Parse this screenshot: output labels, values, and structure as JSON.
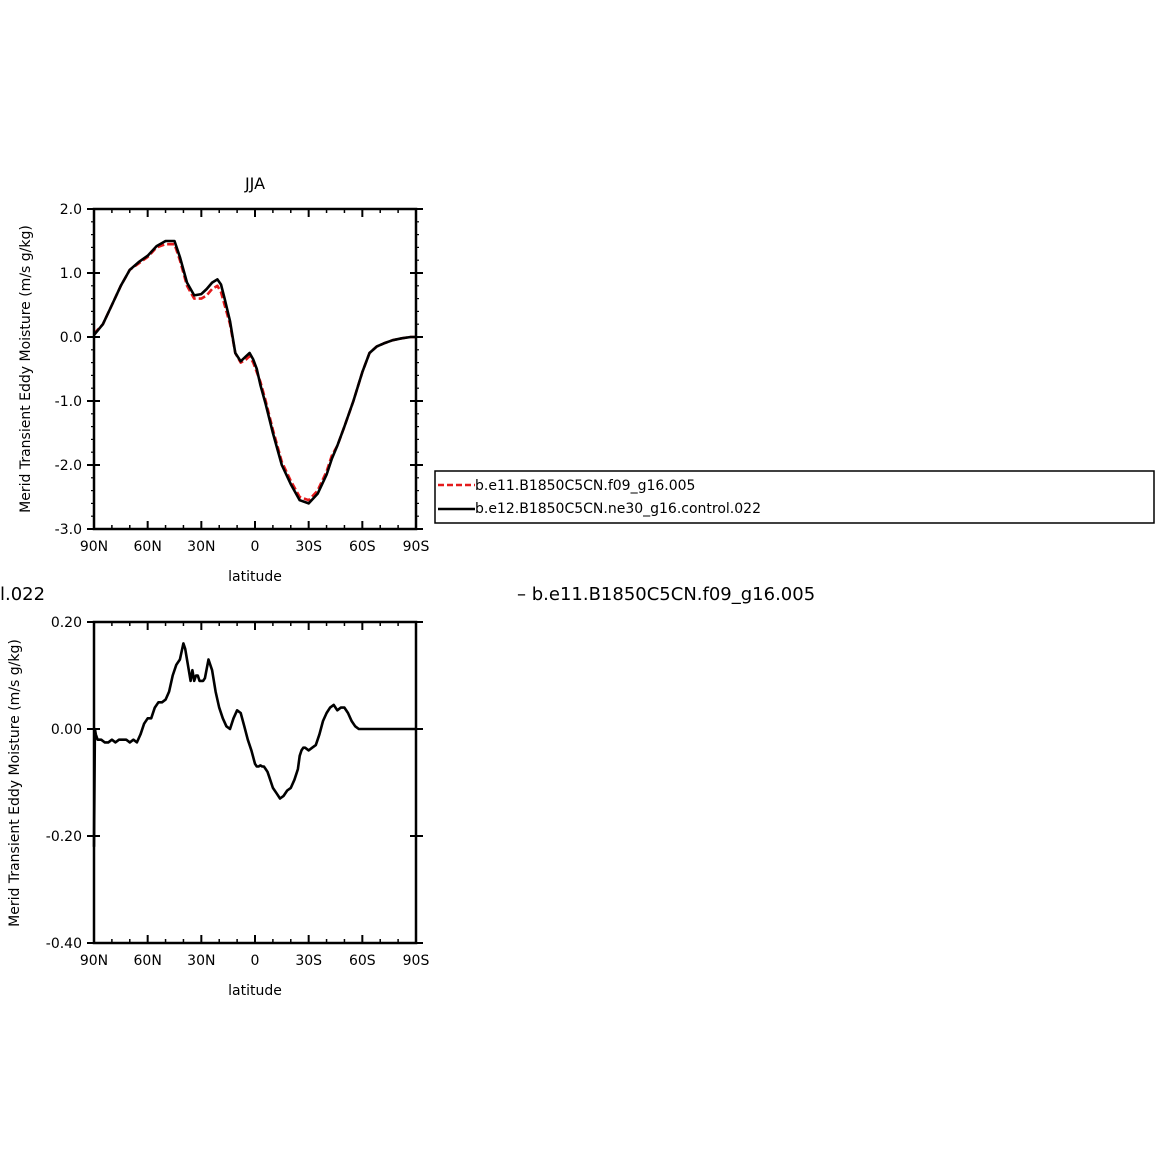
{
  "chart_data": [
    {
      "type": "line",
      "title": "JJA",
      "xlabel": "latitude",
      "ylabel": "Merid Transient Eddy Moisture (m/s g/kg)",
      "xlim": [
        -90,
        90
      ],
      "ylim": [
        -3.0,
        2.0
      ],
      "x_ticks": [
        -90,
        -60,
        -30,
        0,
        30,
        60,
        90
      ],
      "x_tick_labels": [
        "90N",
        "60N",
        "30N",
        "0",
        "30S",
        "60S",
        "90S"
      ],
      "y_ticks": [
        -3.0,
        -2.0,
        -1.0,
        0.0,
        1.0,
        2.0
      ],
      "y_tick_labels": [
        "-3.0",
        "-2.0",
        "-1.0",
        "0.0",
        "1.0",
        "2.0"
      ],
      "legend_position": "right",
      "series": [
        {
          "name": "b.e11.B1850C5CN.f09_g16.005",
          "color": "#e41a1c",
          "dash": true,
          "x": [
            -90,
            -85,
            -80,
            -75,
            -70,
            -65,
            -60,
            -55,
            -50,
            -45,
            -42,
            -38,
            -34,
            -30,
            -27,
            -24,
            -21,
            -19,
            -17,
            -14,
            -11,
            -8,
            -5,
            -3,
            -1,
            1,
            3,
            6,
            10,
            15,
            20,
            25,
            30,
            35,
            40,
            43,
            46,
            50,
            55,
            60,
            64,
            68,
            72,
            77,
            82,
            87,
            90
          ],
          "y": [
            0.05,
            0.2,
            0.5,
            0.8,
            1.05,
            1.15,
            1.25,
            1.4,
            1.45,
            1.45,
            1.2,
            0.8,
            0.6,
            0.6,
            0.65,
            0.75,
            0.8,
            0.7,
            0.5,
            0.2,
            -0.25,
            -0.4,
            -0.35,
            -0.3,
            -0.4,
            -0.55,
            -0.7,
            -1.0,
            -1.45,
            -1.95,
            -2.25,
            -2.5,
            -2.55,
            -2.4,
            -2.1,
            -1.85,
            -1.7,
            -1.4,
            -1.0,
            -0.55,
            -0.25,
            -0.15,
            -0.1,
            -0.05,
            -0.02,
            0.0,
            0.0
          ]
        },
        {
          "name": "b.e12.B1850C5CN.ne30_g16.control.022",
          "color": "#000000",
          "dash": false,
          "x": [
            -90,
            -85,
            -80,
            -75,
            -70,
            -65,
            -60,
            -55,
            -50,
            -45,
            -42,
            -38,
            -34,
            -30,
            -27,
            -24,
            -21,
            -19,
            -17,
            -14,
            -11,
            -8,
            -5,
            -3,
            -1,
            1,
            3,
            6,
            10,
            15,
            20,
            25,
            30,
            35,
            40,
            43,
            46,
            50,
            55,
            60,
            64,
            68,
            72,
            77,
            82,
            87,
            90
          ],
          "y": [
            0.03,
            0.2,
            0.5,
            0.8,
            1.05,
            1.17,
            1.27,
            1.42,
            1.5,
            1.5,
            1.25,
            0.85,
            0.65,
            0.67,
            0.75,
            0.85,
            0.9,
            0.82,
            0.6,
            0.25,
            -0.25,
            -0.38,
            -0.3,
            -0.25,
            -0.35,
            -0.5,
            -0.75,
            -1.05,
            -1.5,
            -2.0,
            -2.3,
            -2.55,
            -2.6,
            -2.45,
            -2.15,
            -1.9,
            -1.7,
            -1.4,
            -1.0,
            -0.55,
            -0.25,
            -0.15,
            -0.1,
            -0.05,
            -0.02,
            0.0,
            0.0
          ]
        }
      ]
    },
    {
      "type": "line",
      "title": "",
      "left_fragment": "l.022",
      "right_fragment": "– b.e11.B1850C5CN.f09_g16.005",
      "xlabel": "latitude",
      "ylabel": "Merid Transient Eddy Moisture (m/s g/kg)",
      "xlim": [
        -90,
        90
      ],
      "ylim": [
        -0.4,
        0.2
      ],
      "x_ticks": [
        -90,
        -60,
        -30,
        0,
        30,
        60,
        90
      ],
      "x_tick_labels": [
        "90N",
        "60N",
        "30N",
        "0",
        "30S",
        "60S",
        "90S"
      ],
      "y_ticks": [
        -0.4,
        -0.2,
        0.0,
        0.2
      ],
      "y_tick_labels": [
        "-0.40",
        "-0.20",
        "0.00",
        "0.20"
      ],
      "series": [
        {
          "color": "#000000",
          "x": [
            -90,
            -89.5,
            -89,
            -88,
            -86,
            -84,
            -82,
            -80,
            -78,
            -76,
            -74,
            -72,
            -70,
            -68,
            -66,
            -64,
            -62,
            -60,
            -58,
            -56,
            -54,
            -52,
            -50,
            -48,
            -46,
            -44,
            -42,
            -40,
            -39,
            -38,
            -37,
            -36,
            -35,
            -34,
            -33,
            -32,
            -31,
            -30,
            -29,
            -28,
            -26,
            -24,
            -22,
            -20,
            -18,
            -16,
            -14,
            -12,
            -10,
            -8,
            -6,
            -4,
            -2,
            0,
            1,
            2,
            3,
            4,
            5,
            6,
            7,
            8,
            9,
            10,
            12,
            14,
            16,
            18,
            20,
            22,
            24,
            25,
            26,
            27,
            28,
            30,
            32,
            34,
            36,
            38,
            40,
            42,
            44,
            46,
            48,
            50,
            52,
            54,
            56,
            58,
            60,
            62,
            64,
            65,
            66,
            68,
            70,
            72,
            74,
            76,
            78,
            80,
            82,
            84,
            86,
            88,
            90
          ],
          "y": [
            -0.22,
            0.0,
            -0.01,
            -0.02,
            -0.02,
            -0.025,
            -0.025,
            -0.02,
            -0.025,
            -0.02,
            -0.02,
            -0.02,
            -0.025,
            -0.02,
            -0.025,
            -0.01,
            0.01,
            0.02,
            0.02,
            0.04,
            0.05,
            0.05,
            0.055,
            0.07,
            0.1,
            0.12,
            0.13,
            0.16,
            0.15,
            0.13,
            0.11,
            0.09,
            0.11,
            0.09,
            0.1,
            0.1,
            0.09,
            0.09,
            0.09,
            0.095,
            0.13,
            0.11,
            0.07,
            0.04,
            0.02,
            0.005,
            0.0,
            0.02,
            0.035,
            0.03,
            0.005,
            -0.02,
            -0.04,
            -0.065,
            -0.07,
            -0.07,
            -0.068,
            -0.07,
            -0.07,
            -0.075,
            -0.08,
            -0.09,
            -0.1,
            -0.11,
            -0.12,
            -0.13,
            -0.125,
            -0.115,
            -0.11,
            -0.095,
            -0.075,
            -0.05,
            -0.04,
            -0.035,
            -0.035,
            -0.04,
            -0.035,
            -0.03,
            -0.01,
            0.015,
            0.03,
            0.04,
            0.045,
            0.035,
            0.04,
            0.04,
            0.03,
            0.015,
            0.005,
            0.0,
            0.0,
            0.0,
            0.0,
            0.0,
            0.0,
            0.0,
            0.0,
            0.0,
            0.0,
            0.0,
            0.0,
            0.0,
            0.0,
            0.0,
            0.0,
            0.0,
            0.0
          ]
        }
      ]
    }
  ]
}
